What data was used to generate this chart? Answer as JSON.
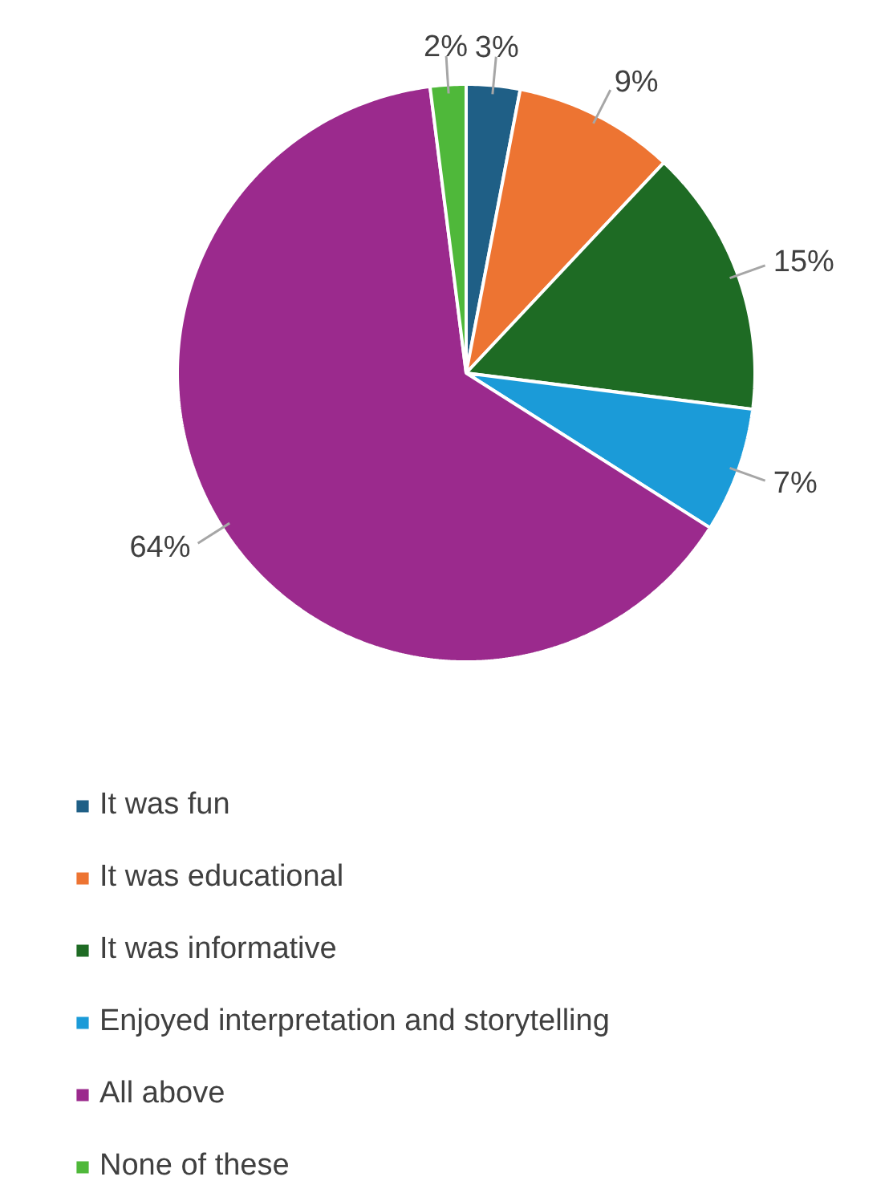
{
  "chart_data": {
    "type": "pie",
    "categories": [
      "It was fun",
      "It was educational",
      "It was informative",
      "Enjoyed interpretation and storytelling",
      "All above",
      "None of these"
    ],
    "values": [
      3,
      9,
      15,
      7,
      64,
      2
    ],
    "colors": [
      "#1f5f86",
      "#ed7432",
      "#1e6b24",
      "#1b9bd8",
      "#9b2a8d",
      "#4fb83a"
    ],
    "value_labels": [
      "3%",
      "9%",
      "15%",
      "7%",
      "64%",
      "2%"
    ],
    "legend": "bottom"
  }
}
